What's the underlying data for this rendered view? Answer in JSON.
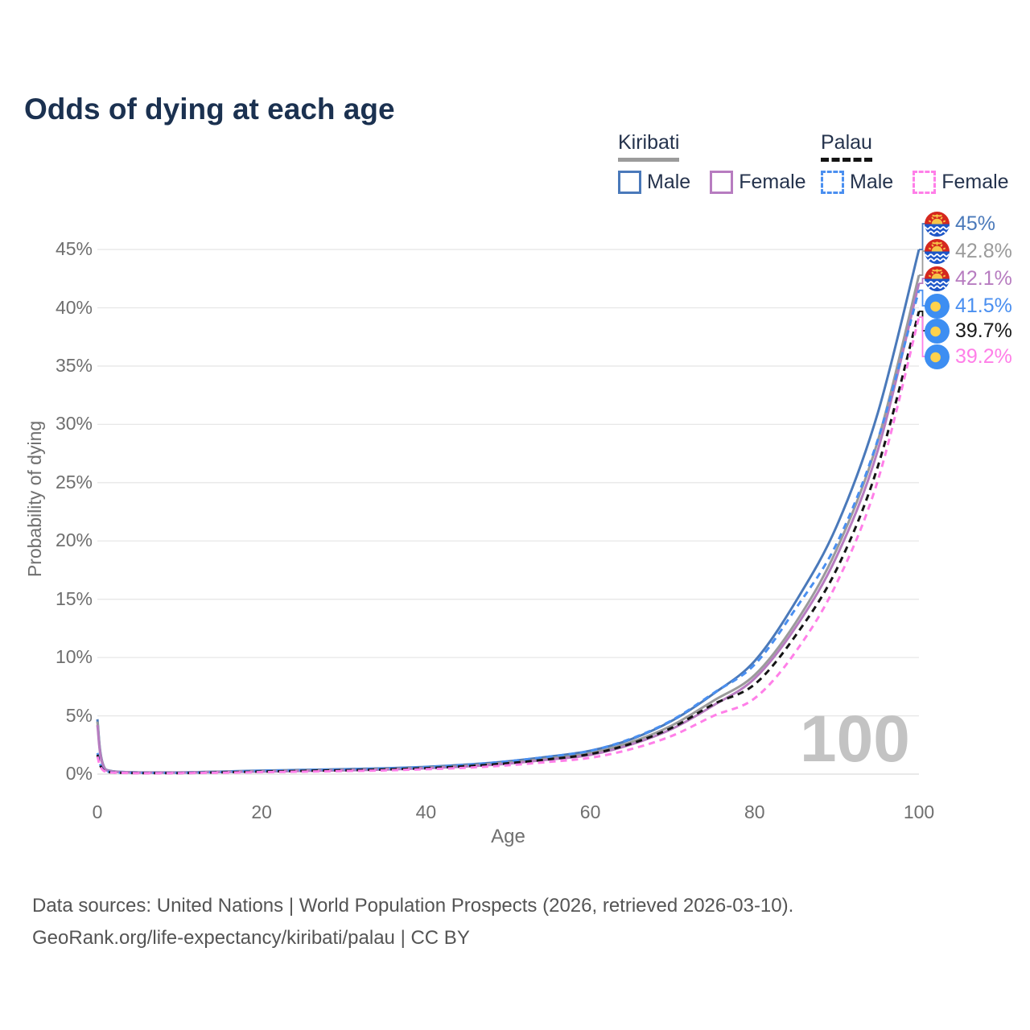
{
  "title": "Odds of dying at each age",
  "watermark_age": "100",
  "colors": {
    "title_text": "#1b3150",
    "axis_text": "#6f6f6f",
    "grid": "#e7e7e7",
    "legend_text": "#25334d",
    "watermark": "#c3c3c3",
    "footer_text": "#545454",
    "kiribati_male": "#4a79ba",
    "kiribati_all": "#9b9b9b",
    "kiribati_female": "#b77cc0",
    "palau_male": "#4a8ff0",
    "palau_all": "#141414",
    "palau_female": "#ff7fe8"
  },
  "legend": {
    "groups": [
      {
        "name": "Kiribati",
        "sample_style": "solid",
        "sample_color": "#9b9b9b",
        "items": [
          {
            "label": "Male",
            "color": "#4a79ba",
            "style": "solid"
          },
          {
            "label": "Female",
            "color": "#b77cc0",
            "style": "solid"
          }
        ]
      },
      {
        "name": "Palau",
        "sample_style": "dashed",
        "sample_color": "#141414",
        "items": [
          {
            "label": "Male",
            "color": "#4a8ff0",
            "style": "dashed"
          },
          {
            "label": "Female",
            "color": "#ff7fe8",
            "style": "dashed"
          }
        ]
      }
    ]
  },
  "chart_data": {
    "type": "line",
    "title": "Odds of dying at each age",
    "xlabel": "Age",
    "ylabel": "Probability of dying",
    "xlim": [
      0,
      100
    ],
    "ylim_pct": [
      0,
      47
    ],
    "x_ticks": [
      0,
      20,
      40,
      60,
      80,
      100
    ],
    "y_ticks_pct": [
      0,
      5,
      10,
      15,
      20,
      25,
      30,
      35,
      40,
      45
    ],
    "grid": true,
    "legend_position": "top-right",
    "current_age_label": "100",
    "x": [
      0,
      1,
      5,
      10,
      15,
      20,
      25,
      30,
      35,
      40,
      45,
      50,
      55,
      60,
      65,
      70,
      75,
      80,
      85,
      90,
      95,
      100
    ],
    "series": [
      {
        "name": "Kiribati Male",
        "flag": "kiribati",
        "color": "#4a79ba",
        "dash": false,
        "end_label": "45%",
        "label_color": "#4a79ba",
        "values_pct": [
          4.7,
          0.4,
          0.15,
          0.15,
          0.22,
          0.3,
          0.36,
          0.42,
          0.5,
          0.62,
          0.82,
          1.1,
          1.5,
          2.0,
          3.0,
          4.6,
          6.9,
          9.7,
          14.8,
          21.3,
          31.0,
          45.0
        ]
      },
      {
        "name": "Kiribati",
        "flag": "kiribati",
        "color": "#9b9b9b",
        "dash": false,
        "end_label": "42.8%",
        "label_color": "#9b9b9b",
        "values_pct": [
          4.5,
          0.37,
          0.14,
          0.14,
          0.2,
          0.26,
          0.31,
          0.36,
          0.44,
          0.55,
          0.73,
          1.0,
          1.35,
          1.8,
          2.75,
          4.2,
          6.3,
          8.5,
          13.0,
          19.3,
          28.6,
          42.8
        ]
      },
      {
        "name": "Kiribati Female",
        "flag": "kiribati",
        "color": "#b77cc0",
        "dash": false,
        "end_label": "42.1%",
        "label_color": "#b77cc0",
        "values_pct": [
          4.2,
          0.34,
          0.13,
          0.13,
          0.18,
          0.22,
          0.27,
          0.32,
          0.39,
          0.5,
          0.66,
          0.9,
          1.25,
          1.65,
          2.55,
          3.9,
          5.9,
          8.2,
          12.6,
          18.7,
          27.8,
          42.1
        ]
      },
      {
        "name": "Palau Male",
        "flag": "palau",
        "color": "#4a8ff0",
        "dash": true,
        "end_label": "41.5%",
        "label_color": "#4a8ff0",
        "values_pct": [
          1.8,
          0.25,
          0.1,
          0.1,
          0.18,
          0.28,
          0.34,
          0.4,
          0.48,
          0.6,
          0.8,
          1.1,
          1.5,
          2.0,
          3.05,
          4.65,
          6.95,
          9.4,
          14.2,
          19.8,
          28.7,
          41.5
        ]
      },
      {
        "name": "Palau",
        "flag": "palau",
        "color": "#141414",
        "dash": true,
        "end_label": "39.7%",
        "label_color": "#1a1a1a",
        "values_pct": [
          1.65,
          0.22,
          0.09,
          0.09,
          0.15,
          0.22,
          0.28,
          0.33,
          0.4,
          0.51,
          0.68,
          0.93,
          1.28,
          1.72,
          2.62,
          4.0,
          6.0,
          7.7,
          11.9,
          17.6,
          26.4,
          39.7
        ]
      },
      {
        "name": "Palau Female",
        "flag": "palau",
        "color": "#ff7fe8",
        "dash": true,
        "end_label": "39.2%",
        "label_color": "#ff7fe8",
        "values_pct": [
          1.5,
          0.2,
          0.08,
          0.08,
          0.12,
          0.17,
          0.21,
          0.26,
          0.32,
          0.42,
          0.55,
          0.76,
          1.05,
          1.4,
          2.15,
          3.3,
          5.0,
          6.5,
          10.5,
          16.4,
          25.2,
          39.2
        ]
      }
    ]
  },
  "footer": {
    "line1": "Data sources: United Nations | World Population Prospects (2026, retrieved 2026-03-10).",
    "line2": "GeoRank.org/life-expectancy/kiribati/palau | CC BY"
  }
}
